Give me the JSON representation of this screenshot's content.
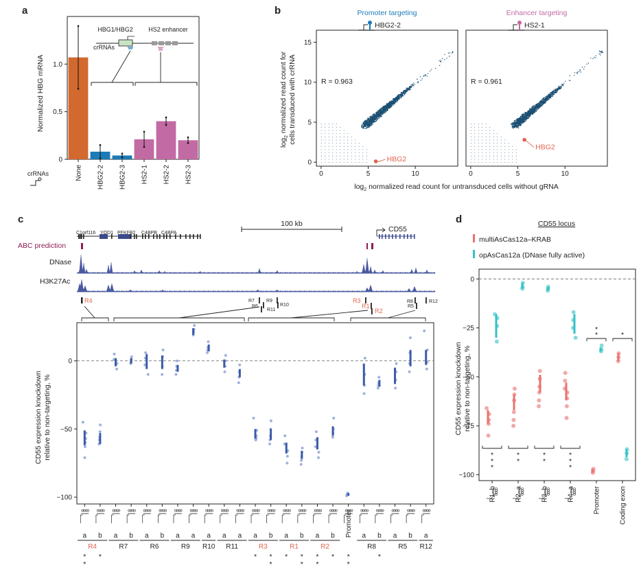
{
  "panels": {
    "a": "a",
    "b": "b",
    "c": "c",
    "d": "d"
  },
  "chart_data": [
    {
      "id": "a",
      "type": "bar",
      "ylabel": "Normalized HBG mRNA",
      "ylim": [
        0,
        1.5
      ],
      "yticks": [
        0,
        0.5,
        1.0
      ],
      "ytick_labels": [
        "0",
        "0.5",
        "1.0"
      ],
      "categories": [
        "None",
        "HBG2-2",
        "HBG2-3",
        "HS2-1",
        "HS2-2",
        "HS2-3"
      ],
      "values": [
        1.07,
        0.08,
        0.04,
        0.21,
        0.4,
        0.2
      ],
      "errors": [
        0.33,
        0.07,
        0.02,
        0.08,
        0.04,
        0.03
      ],
      "colors": [
        "#d2692f",
        "#1c7bb7",
        "#1c7bb7",
        "#c26aa3",
        "#c26aa3",
        "#c26aa3"
      ],
      "row_label": "crRNAs",
      "inset": {
        "label_left": "HBG1/HBG2",
        "label_right": "HS2 enhancer",
        "crrna_label": "crRNAs"
      }
    },
    {
      "id": "b",
      "type": "scatter",
      "xlabel": "log2 normalized read count for untransduced cells without gRNA",
      "xlabel_main": "log",
      "xlabel_sub": "2",
      "xlabel_rest": " normalized read count for untransduced cells without gRNA",
      "ylabel_line1_main": "log",
      "ylabel_line1_sub": "2",
      "ylabel_line1_rest": " normalized read count for",
      "ylabel_line2": "cells transduced with crRNA",
      "xlim": [
        -0.5,
        14.5
      ],
      "ylim": [
        -0.5,
        16.5
      ],
      "xticks": [
        0,
        5,
        10
      ],
      "yticks": [
        0,
        5,
        10,
        15
      ],
      "subplots": [
        {
          "title": "Promoter targeting",
          "guide": "HBG2-2",
          "r": "R = 0.963",
          "highlight": {
            "name": "HBG2",
            "x": 5.8,
            "y": 0.1
          },
          "title_color": "#1c7bb7"
        },
        {
          "title": "Enhancer targeting",
          "guide": "HS2-1",
          "r": "R = 0.961",
          "highlight": {
            "name": "HBG2",
            "x": 5.7,
            "y": 2.8
          },
          "title_color": "#c26aa3"
        }
      ]
    },
    {
      "id": "c",
      "type": "scatter",
      "ylabel_line1": "CD55 expression knockdown",
      "ylabel_line2": "relative to non-targeting, %",
      "ylim": [
        -105,
        28
      ],
      "yticks": [
        0,
        -50,
        -100
      ],
      "ytick_labels": [
        "0",
        "−50",
        "−100"
      ],
      "scale_label": "100 kb",
      "genes": [
        "C1orf116",
        "YOD1",
        "PFKFB2",
        "C4BPB",
        "C4BPA",
        "CD55"
      ],
      "tracks": [
        "ABC prediction",
        "DNase",
        "H3K27Ac"
      ],
      "regions": [
        "R4",
        "R7",
        "R6",
        "R9",
        "R10",
        "R11",
        "R3",
        "R1",
        "R2",
        "R8",
        "R5",
        "R12"
      ],
      "region_label_r1r3": [
        "R3",
        "R1",
        "R2"
      ],
      "columns": [
        {
          "sub": "a",
          "mean": -57,
          "lo": -62,
          "hi": -51,
          "pts": [
            -45,
            -53,
            -57,
            -60,
            -63,
            -71
          ]
        },
        {
          "sub": "b",
          "mean": -57,
          "lo": -61,
          "hi": -53,
          "pts": [
            -47,
            -52,
            -56,
            -58,
            -61
          ]
        },
        {
          "sub": "a",
          "mean": -1,
          "lo": -4,
          "hi": 2,
          "pts": [
            5,
            1,
            -2,
            -6
          ]
        },
        {
          "sub": "b",
          "mean": 0,
          "lo": -2,
          "hi": 2,
          "pts": [
            3,
            1,
            -1,
            -2
          ]
        },
        {
          "sub": "a",
          "mean": -1,
          "lo": -6,
          "hi": 5,
          "pts": [
            6,
            2,
            -3,
            -10
          ]
        },
        {
          "sub": "b",
          "mean": -1,
          "lo": -6,
          "hi": 4,
          "pts": [
            8,
            3,
            -4,
            -10
          ]
        },
        {
          "sub": "a",
          "mean": -6,
          "lo": -8,
          "hi": -3,
          "pts": [
            0,
            -4,
            -7,
            -10
          ]
        },
        {
          "sub": "a",
          "mean": 21,
          "lo": 19,
          "hi": 24,
          "pts": [
            26,
            23,
            21,
            19
          ]
        },
        {
          "sub": "a",
          "mean": 9,
          "lo": 7,
          "hi": 12,
          "pts": [
            14,
            10,
            8,
            6
          ]
        },
        {
          "sub": "a",
          "mean": -2,
          "lo": -5,
          "hi": 1,
          "pts": [
            4,
            0,
            -4,
            -8
          ]
        },
        {
          "sub": "a",
          "mean": -9,
          "lo": -12,
          "hi": -6,
          "pts": [
            -3,
            -8,
            -12,
            -16
          ]
        },
        {
          "sub": "a",
          "mean": -54,
          "lo": -57,
          "hi": -50,
          "pts": [
            -42,
            -51,
            -55,
            -57,
            -58
          ]
        },
        {
          "sub": "b",
          "mean": -54,
          "lo": -58,
          "hi": -50,
          "pts": [
            -44,
            -50,
            -55,
            -58,
            -61
          ]
        },
        {
          "sub": "a",
          "mean": -64,
          "lo": -68,
          "hi": -60,
          "pts": [
            -55,
            -61,
            -66,
            -70,
            -75
          ]
        },
        {
          "sub": "b",
          "mean": -70,
          "lo": -72,
          "hi": -66,
          "pts": [
            -64,
            -67,
            -70,
            -73,
            -76
          ]
        },
        {
          "sub": "a",
          "mean": -62,
          "lo": -65,
          "hi": -56,
          "pts": [
            -52,
            -58,
            -63,
            -67,
            -71
          ]
        },
        {
          "sub": "b",
          "mean": -51,
          "lo": -55,
          "hi": -48,
          "pts": [
            -42,
            -50,
            -53,
            -56
          ]
        },
        {
          "sub": "Promoter",
          "mean": -98,
          "lo": -99,
          "hi": -97,
          "pts": [
            -97,
            -98,
            -98,
            -99
          ]
        },
        {
          "sub": "a",
          "mean": -10,
          "lo": -18,
          "hi": -2,
          "pts": [
            2,
            -10,
            -18,
            -24
          ]
        },
        {
          "sub": "b",
          "mean": -17,
          "lo": -19,
          "hi": -14,
          "pts": [
            -12,
            -16,
            -18,
            -20
          ]
        },
        {
          "sub": "a",
          "mean": -11,
          "lo": -17,
          "hi": -5,
          "pts": [
            -2,
            -8,
            -14,
            -20
          ]
        },
        {
          "sub": "b",
          "mean": 2,
          "lo": -4,
          "hi": 8,
          "pts": [
            17,
            6,
            -2,
            -8
          ]
        },
        {
          "sub": "a",
          "mean": 2,
          "lo": -3,
          "hi": 8,
          "pts": [
            22,
            8,
            -1,
            -6
          ]
        }
      ],
      "bottom_groups": [
        {
          "label": "R4",
          "cols": [
            0,
            1
          ],
          "color": "#e0634c"
        },
        {
          "label": "R7",
          "cols": [
            2,
            3
          ],
          "color": "#222"
        },
        {
          "label": "R6",
          "cols": [
            4,
            5
          ],
          "color": "#222"
        },
        {
          "label": "R9",
          "cols": [
            6,
            7
          ],
          "color": "#222"
        },
        {
          "label": "R10",
          "cols": [
            8
          ],
          "color": "#222"
        },
        {
          "label": "R11",
          "cols": [
            9,
            10
          ],
          "color": "#222"
        },
        {
          "label": "R3",
          "cols": [
            11,
            12
          ],
          "color": "#e0634c"
        },
        {
          "label": "R1",
          "cols": [
            13,
            14
          ],
          "color": "#e0634c"
        },
        {
          "label": "R2",
          "cols": [
            15,
            16
          ],
          "color": "#e0634c"
        },
        {
          "label": "R8",
          "cols": [
            18,
            19
          ],
          "color": "#222"
        },
        {
          "label": "R5",
          "cols": [
            20,
            21
          ],
          "color": "#222"
        },
        {
          "label": "R12",
          "cols": [
            22
          ],
          "color": "#222"
        }
      ],
      "star_cols": [
        0,
        1,
        11,
        12,
        13,
        14,
        15,
        16,
        17,
        19
      ],
      "double_star_cols": [
        0,
        12,
        14,
        15,
        17
      ],
      "star": "*"
    },
    {
      "id": "d",
      "type": "scatter",
      "title": "CD55 locus",
      "ylabel_line1": "CD55 expression knockdown",
      "ylabel_line2": "relative to non-targeting, %",
      "ylim": [
        -103,
        5
      ],
      "yticks": [
        0,
        -25,
        -50,
        -75,
        -100
      ],
      "ytick_labels": [
        "0",
        "−25",
        "−50",
        "−75",
        "−100"
      ],
      "series": [
        {
          "name": "multiAsCas12a–KRAB",
          "color": "#e8716e"
        },
        {
          "name": "opAsCas12a (DNase fully active)",
          "color": "#35c1c6"
        }
      ],
      "categories": [
        "R1–b",
        "R2–a",
        "R3–b",
        "R4–a",
        "Promoter",
        "Coding exon"
      ],
      "groups": [
        {
          "krab": {
            "mean": -72,
            "lo": -74,
            "hi": -67,
            "pts": [
              -66,
              -69,
              -72,
              -74,
              -80
            ]
          },
          "op": {
            "mean": -22,
            "lo": -30,
            "hi": -18,
            "pts": [
              -18,
              -20,
              -24,
              -32
            ]
          }
        },
        {
          "krab": {
            "mean": -62,
            "lo": -67,
            "hi": -59,
            "pts": [
              -56,
              -59,
              -62,
              -68,
              -72,
              -75
            ]
          },
          "op": {
            "mean": -4,
            "lo": -5,
            "hi": -2,
            "pts": [
              -2,
              -4,
              -5
            ]
          }
        },
        {
          "krab": {
            "mean": -54,
            "lo": -58,
            "hi": -49,
            "pts": [
              -47,
              -51,
              -55,
              -58,
              -62,
              -65
            ]
          },
          "op": {
            "mean": -5,
            "lo": -6,
            "hi": -4,
            "pts": [
              -4,
              -5,
              -6
            ]
          }
        },
        {
          "krab": {
            "mean": -58,
            "lo": -62,
            "hi": -53,
            "pts": [
              -48,
              -52,
              -56,
              -58,
              -61,
              -65,
              -71
            ]
          },
          "op": {
            "mean": -22,
            "lo": -28,
            "hi": -18,
            "pts": [
              -17,
              -21,
              -25,
              -30
            ]
          }
        },
        {
          "krab": {
            "mean": -98,
            "lo": -99,
            "hi": -97,
            "pts": [
              -97,
              -98,
              -99
            ]
          },
          "op": {
            "mean": -36,
            "lo": -37,
            "hi": -35,
            "pts": [
              -34,
              -36,
              -37
            ]
          }
        },
        {
          "krab": {
            "mean": -40,
            "lo": -42,
            "hi": -38,
            "pts": [
              -38,
              -40,
              -42
            ]
          },
          "op": {
            "mean": -89,
            "lo": -91,
            "hi": -87,
            "pts": [
              -87,
              -89,
              -92
            ]
          }
        }
      ],
      "bottom_brackets": [
        {
          "group": 0,
          "stars": [
            "*",
            "*",
            "*"
          ]
        },
        {
          "group": 1,
          "stars": [
            "*",
            "*"
          ]
        },
        {
          "group": 2,
          "stars": [
            "*",
            "*"
          ]
        },
        {
          "group": 3,
          "stars": [
            "*",
            "*",
            "*"
          ]
        }
      ],
      "top_brackets": [
        {
          "group": 4,
          "stars": [
            "*",
            "*"
          ]
        },
        {
          "group": 5,
          "stars": [
            "*"
          ]
        }
      ]
    }
  ]
}
